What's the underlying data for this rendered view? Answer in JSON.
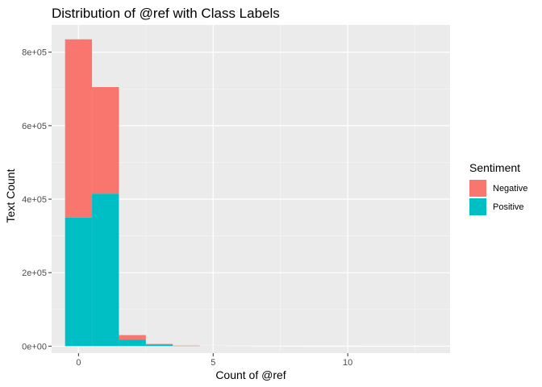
{
  "chart_data": {
    "type": "bar",
    "stacked": true,
    "title": "Distribution of @ref with Class Labels",
    "xlabel": "Count of @ref",
    "ylabel": "Text Count",
    "x": [
      0,
      1,
      2,
      3,
      4,
      5,
      6,
      7,
      8,
      9,
      10
    ],
    "series": [
      {
        "name": "Negative",
        "color": "#F8766D",
        "values": [
          485000,
          290000,
          12000,
          2000,
          500,
          200,
          100,
          50,
          30,
          20,
          10
        ]
      },
      {
        "name": "Positive",
        "color": "#00BFC4",
        "values": [
          350000,
          415000,
          18000,
          4000,
          1000,
          300,
          150,
          80,
          40,
          20,
          10
        ]
      }
    ],
    "xlim": [
      -1,
      13.8
    ],
    "ylim": [
      -19000,
      874000
    ],
    "x_ticks": [
      0,
      5,
      10
    ],
    "x_tick_labels": [
      "0",
      "5",
      "10"
    ],
    "y_ticks": [
      0,
      200000,
      400000,
      600000,
      800000
    ],
    "y_tick_labels": [
      "0e+00",
      "2e+05",
      "4e+05",
      "6e+05",
      "8e+05"
    ],
    "grid": true,
    "legend": {
      "title": "Sentiment",
      "position": "right"
    }
  }
}
